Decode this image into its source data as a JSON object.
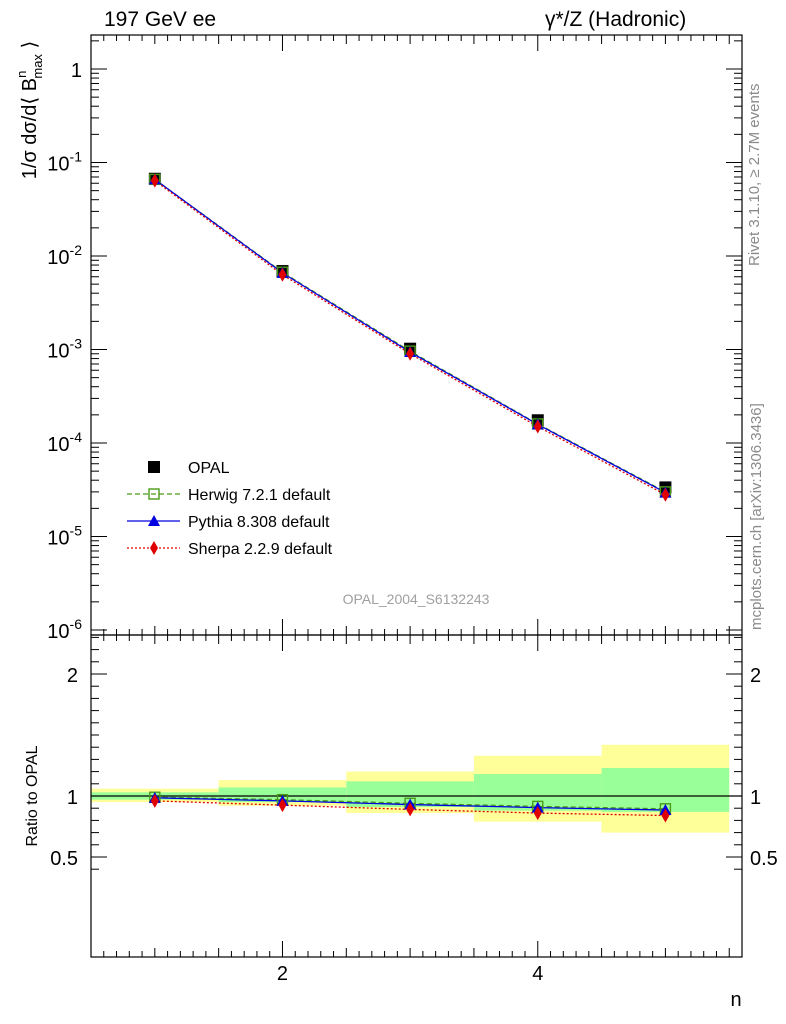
{
  "header": {
    "left": "197 GeV ee",
    "right": "γ*/Z (Hadronic)"
  },
  "side": {
    "rivet": "Rivet 3.1.10, ≥ 2.7M events",
    "mcplots": "mcplots.cern.ch [arXiv:1306.3436]"
  },
  "chart_data": [
    {
      "type": "scatter",
      "yscale": "log",
      "xlabel": "n",
      "ylabel": "1/σ dσ/d⟨ B^n_max ⟩",
      "xlim": [
        0.5,
        5.6
      ],
      "ylim": [
        1e-06,
        2.2
      ],
      "y_tick_labels": [
        "1",
        "10^-1",
        "10^-2",
        "10^-3",
        "10^-4",
        "10^-5",
        "10^-6"
      ],
      "watermark": "OPAL_2004_S6132243",
      "legend_position": "lower-left",
      "x": [
        1,
        2,
        3,
        4,
        5
      ],
      "series": [
        {
          "name": "OPAL",
          "values": [
            0.067,
            0.0069,
            0.00102,
            0.000175,
            3.35e-05
          ],
          "color": "#000000",
          "marker": "square",
          "line": "none"
        },
        {
          "name": "Herwig 7.2.1 default",
          "values": [
            0.066,
            0.0067,
            0.00096,
            0.00016,
            3e-05
          ],
          "color": "#4a9a1a",
          "marker": "open-square",
          "line": "dashed"
        },
        {
          "name": "Pythia 8.308 default",
          "values": [
            0.066,
            0.0066,
            0.00094,
            0.000158,
            2.95e-05
          ],
          "color": "#0000e0",
          "marker": "triangle",
          "line": "solid"
        },
        {
          "name": "Sherpa 2.2.9 default",
          "values": [
            0.064,
            0.0063,
            0.0009,
            0.00015,
            2.8e-05
          ],
          "color": "#e00000",
          "marker": "diamond",
          "line": "dotted"
        }
      ]
    },
    {
      "type": "line",
      "xlabel": "n",
      "ylabel": "Ratio to OPAL",
      "xlim": [
        0.5,
        5.6
      ],
      "ylim": [
        0.4,
        2.4
      ],
      "y_ticks": [
        0.5,
        1,
        2
      ],
      "y_tick_labels": [
        "0.5",
        "1",
        "2"
      ],
      "x_ticks": [
        2,
        4
      ],
      "x_tick_labels": [
        "2",
        "4"
      ],
      "x": [
        1,
        2,
        3,
        4,
        5
      ],
      "bins": [
        [
          0.5,
          1.5
        ],
        [
          1.5,
          2.5
        ],
        [
          2.5,
          3.5
        ],
        [
          3.5,
          4.5
        ],
        [
          4.5,
          5.5
        ]
      ],
      "band_outer": [
        [
          0.95,
          1.06
        ],
        [
          0.92,
          1.13
        ],
        [
          0.86,
          1.2
        ],
        [
          0.79,
          1.33
        ],
        [
          0.7,
          1.42
        ]
      ],
      "band_inner": [
        [
          0.97,
          1.03
        ],
        [
          0.95,
          1.07
        ],
        [
          0.91,
          1.12
        ],
        [
          0.88,
          1.18
        ],
        [
          0.87,
          1.23
        ]
      ],
      "band_colors": {
        "outer": "#ffff99",
        "inner": "#99ff99"
      },
      "series": [
        {
          "name": "Herwig 7.2.1 default",
          "values": [
            0.99,
            0.97,
            0.94,
            0.915,
            0.895
          ],
          "color": "#4a9a1a",
          "marker": "open-square",
          "line": "dashed"
        },
        {
          "name": "Pythia 8.308 default",
          "values": [
            0.985,
            0.96,
            0.93,
            0.905,
            0.885
          ],
          "color": "#0000e0",
          "marker": "triangle",
          "line": "solid"
        },
        {
          "name": "Sherpa 2.2.9 default",
          "values": [
            0.96,
            0.925,
            0.89,
            0.86,
            0.84
          ],
          "color": "#e00000",
          "marker": "diamond",
          "line": "dotted"
        }
      ]
    }
  ]
}
